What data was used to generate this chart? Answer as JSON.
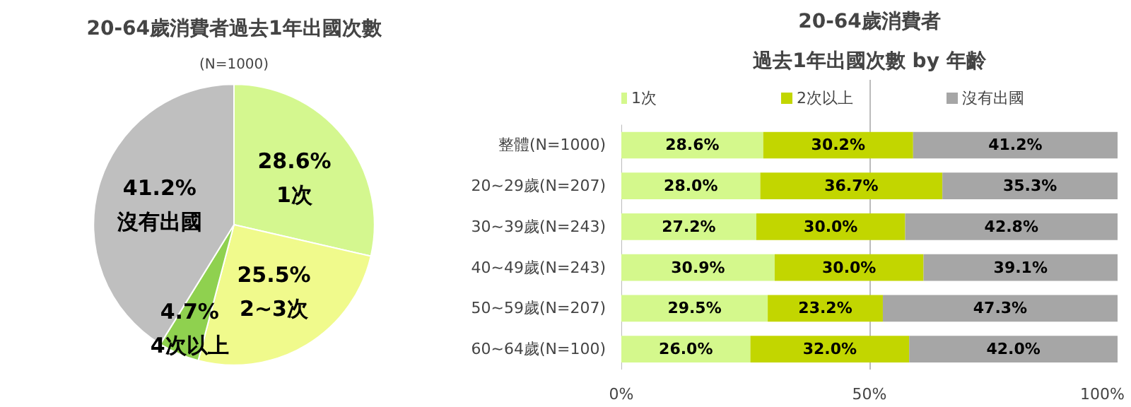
{
  "chart_data": [
    {
      "type": "pie",
      "title": "20-64歲消費者過去1年出國次數",
      "subtitle": "(N=1000)",
      "categories": [
        "1次",
        "2~3次",
        "4次以上",
        "沒有出國"
      ],
      "values": [
        28.6,
        25.5,
        4.7,
        41.2
      ],
      "colors": [
        "#d4f78f",
        "#f0fa8c",
        "#8fd14f",
        "#bfbfbf"
      ],
      "value_labels": [
        "28.6%",
        "25.5%",
        "4.7%",
        "41.2%"
      ]
    },
    {
      "type": "bar",
      "orientation": "horizontal",
      "stacked": true,
      "title": "20-64歲消費者",
      "subtitle": "過去1年出國次數 by 年齡",
      "categories": [
        "整體(N=1000)",
        "20~29歲(N=207)",
        "30~39歲(N=243)",
        "40~49歲(N=243)",
        "50~59歲(N=207)",
        "60~64歲(N=100)"
      ],
      "series": [
        {
          "name": "1次",
          "color": "#d4f88c",
          "values": [
            28.6,
            28.0,
            27.2,
            30.9,
            29.5,
            26.0
          ],
          "value_labels": [
            "28.6%",
            "28.0%",
            "27.2%",
            "30.9%",
            "29.5%",
            "26.0%"
          ]
        },
        {
          "name": "2次以上",
          "color": "#c2d600",
          "values": [
            30.2,
            36.7,
            30.0,
            30.0,
            23.2,
            32.0
          ],
          "value_labels": [
            "30.2%",
            "36.7%",
            "30.0%",
            "30.0%",
            "23.2%",
            "32.0%"
          ]
        },
        {
          "name": "沒有出國",
          "color": "#a6a6a6",
          "values": [
            41.2,
            35.3,
            42.8,
            39.1,
            47.3,
            42.0
          ],
          "value_labels": [
            "41.2%",
            "35.3%",
            "42.8%",
            "39.1%",
            "47.3%",
            "42.0%"
          ]
        }
      ],
      "xlim": [
        0,
        100
      ],
      "xticks": [
        {
          "value": 0,
          "label": "0%"
        },
        {
          "value": 50,
          "label": "50%"
        },
        {
          "value": 100,
          "label": "100%"
        }
      ],
      "grid": "x",
      "legend": "top"
    }
  ]
}
